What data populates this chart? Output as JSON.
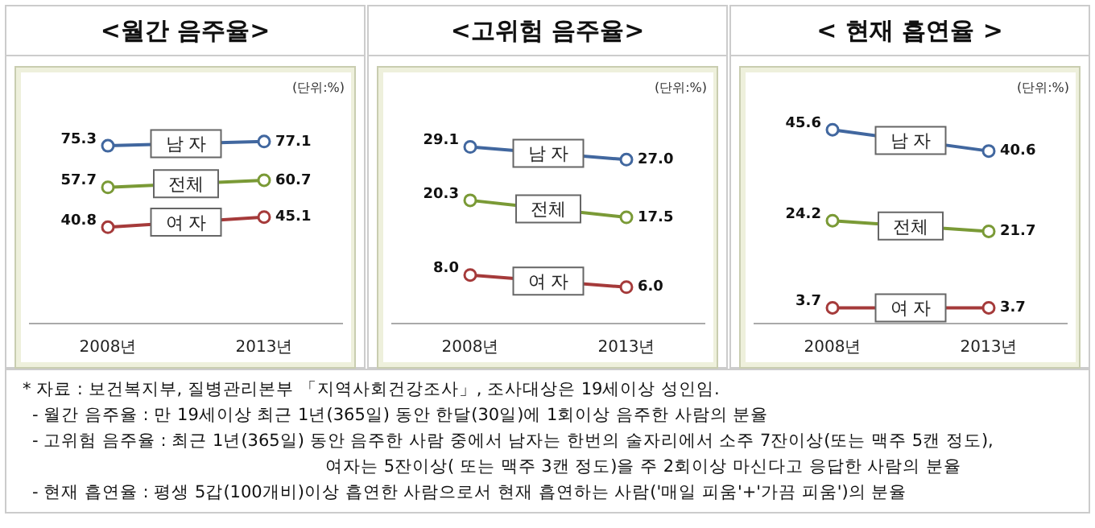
{
  "chart_data": [
    {
      "type": "line",
      "title": "<월간 음주율>",
      "annotations": [
        "(단위:%)"
      ],
      "categories": [
        "2008년",
        "2013년"
      ],
      "tick_labels": "x",
      "legend": false,
      "marker": "circle",
      "line_style": "solid",
      "series": [
        {
          "name": "남 자",
          "color": "#41679f",
          "values": [
            75.3,
            77.1
          ],
          "value_labels": [
            "75.3",
            "77.1"
          ]
        },
        {
          "name": "전체",
          "color": "#7a9a36",
          "values": [
            57.7,
            60.7
          ],
          "value_labels": [
            "57.7",
            "60.7"
          ]
        },
        {
          "name": "여 자",
          "color": "#a53a3a",
          "values": [
            40.8,
            45.1
          ],
          "value_labels": [
            "40.8",
            "45.1"
          ]
        }
      ]
    },
    {
      "type": "line",
      "title": "<고위험 음주율>",
      "annotations": [
        "(단위:%)"
      ],
      "categories": [
        "2008년",
        "2013년"
      ],
      "tick_labels": "x",
      "legend": false,
      "marker": "circle",
      "line_style": "solid",
      "series": [
        {
          "name": "남 자",
          "color": "#41679f",
          "values": [
            29.1,
            27.0
          ],
          "value_labels": [
            "29.1",
            "27.0"
          ]
        },
        {
          "name": "전체",
          "color": "#7a9a36",
          "values": [
            20.3,
            17.5
          ],
          "value_labels": [
            "20.3",
            "17.5"
          ]
        },
        {
          "name": "여 자",
          "color": "#a53a3a",
          "values": [
            8.0,
            6.0
          ],
          "value_labels": [
            "8.0",
            "6.0"
          ]
        }
      ]
    },
    {
      "type": "line",
      "title": "< 현재 흡연율 >",
      "annotations": [
        "(단위:%)"
      ],
      "categories": [
        "2008년",
        "2013년"
      ],
      "tick_labels": "x",
      "legend": false,
      "marker": "circle",
      "line_style": "solid",
      "series": [
        {
          "name": "남 자",
          "color": "#41679f",
          "values": [
            45.6,
            40.6
          ],
          "value_labels": [
            "45.6",
            "40.6"
          ]
        },
        {
          "name": "전체",
          "color": "#7a9a36",
          "values": [
            24.2,
            21.7
          ],
          "value_labels": [
            "24.2",
            "21.7"
          ]
        },
        {
          "name": "여 자",
          "color": "#a53a3a",
          "values": [
            3.7,
            3.7
          ],
          "value_labels": [
            "3.7",
            "3.7"
          ]
        }
      ]
    },
    {
      "type": "other",
      "annotations": [
        "* 자료 : 보건복지부, 질병관리본부 「지역사회건강조사」, 조사대상은 19세이상 성인임.",
        "- 월간 음주율 : 만 19세이상 최근 1년(365일) 동안 한달(30일)에 1회이상 음주한 사람의 분율",
        "- 고위험 음주율 : 최근 1년(365일) 동안 음주한 사람 중에서 남자는 한번의 술자리에서 소주 7잔이상(또는 맥주 5캔 정도),",
        "여자는 5잔이상( 또는 맥주 3캔 정도)을 주 2회이상 마신다고 응답한 사람의 분율",
        "- 현재 흡연율 : 평생 5갑(100개비)이상 흡연한 사람으로서 현재 흡연하는 사람('매일 피움'+'가끔 피움')의 분율"
      ]
    }
  ]
}
